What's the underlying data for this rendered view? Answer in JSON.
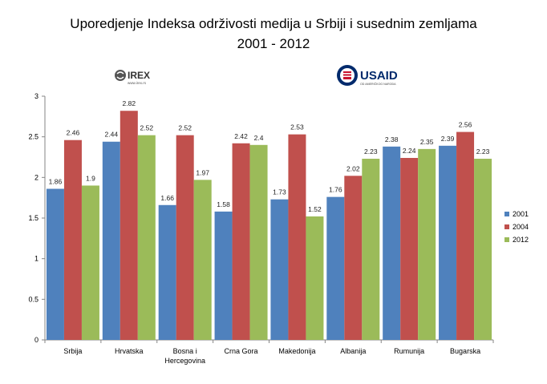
{
  "title_line1": "Uporedjenje Indeksa održivosti medija u Srbiji i susednim zemljama",
  "title_line2": "2001 - 2012",
  "logos": {
    "irex_text": "IREX",
    "irex_sub": "www.irex.rs",
    "usaid_text": "USAID",
    "usaid_sub": "OD AMERIČKOG NARODA"
  },
  "colors": {
    "s2001": "#4f81bd",
    "s2004": "#c0504d",
    "s2012": "#9bbb59"
  },
  "chart_data": {
    "type": "bar",
    "title": "Uporedjenje Indeksa održivosti medija u Srbiji i susednim zemljama 2001 - 2012",
    "categories": [
      "Srbija",
      "Hrvatska",
      "Bosna i Hercegovina",
      "Crna Gora",
      "Makedonija",
      "Albanija",
      "Rumunija",
      "Bugarska"
    ],
    "category_lines": [
      [
        "Srbija"
      ],
      [
        "Hrvatska"
      ],
      [
        "Bosna i",
        "Hercegovina"
      ],
      [
        "Crna Gora"
      ],
      [
        "Makedonija"
      ],
      [
        "Albanija"
      ],
      [
        "Rumunija"
      ],
      [
        "Bugarska"
      ]
    ],
    "series": [
      {
        "name": "2001",
        "values": [
          1.86,
          2.44,
          1.66,
          1.58,
          1.73,
          1.76,
          2.38,
          2.39
        ]
      },
      {
        "name": "2004",
        "values": [
          2.46,
          2.82,
          2.52,
          2.42,
          2.53,
          2.02,
          2.24,
          2.56
        ]
      },
      {
        "name": "2012",
        "values": [
          1.9,
          2.52,
          1.97,
          2.4,
          1.52,
          2.23,
          2.35,
          2.23
        ]
      }
    ],
    "y_ticks": [
      "0",
      "0.5",
      "1",
      "1.5",
      "2",
      "2.5",
      "3"
    ],
    "ylim": [
      0,
      3
    ],
    "grid": false,
    "legend": "right"
  }
}
